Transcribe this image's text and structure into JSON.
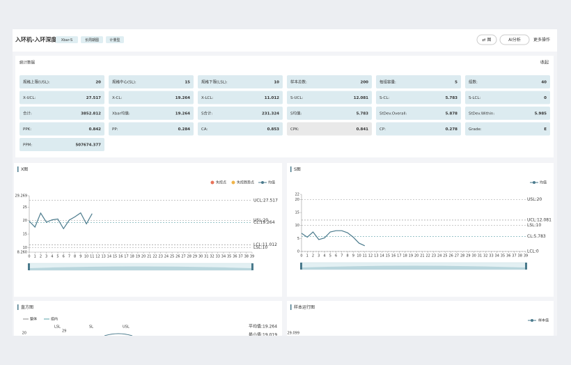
{
  "header": {
    "title": "入环机-入环深度",
    "tags": [
      "Xbar-S",
      "长周期图",
      "计量型"
    ],
    "buttons": [
      "⇄ 图",
      "AI分析",
      "更多操作"
    ]
  },
  "stats": {
    "title": "统计数据",
    "toggle": "收起",
    "items": [
      {
        "label": "规格上限(USL):",
        "value": 20
      },
      {
        "label": "规格中心(SL):",
        "value": 15
      },
      {
        "label": "规格下限(LSL):",
        "value": 10
      },
      {
        "label": "样本总数:",
        "value": 200
      },
      {
        "label": "每组容量:",
        "value": 5
      },
      {
        "label": "组数:",
        "value": 40
      },
      {
        "label": "X-UCL:",
        "value": 27.517
      },
      {
        "label": "X-CL:",
        "value": 19.264
      },
      {
        "label": "X-LCL:",
        "value": 11.012
      },
      {
        "label": "S-UCL:",
        "value": 12.081
      },
      {
        "label": "S-CL:",
        "value": 5.783
      },
      {
        "label": "S-LCL:",
        "value": 0
      },
      {
        "label": "合计:",
        "value": 3852.812
      },
      {
        "label": "Xbar均值:",
        "value": 19.264
      },
      {
        "label": "S合计:",
        "value": 231.324
      },
      {
        "label": "S均值:",
        "value": 5.783
      },
      {
        "label": "StDev.Overall:",
        "value": 5.878
      },
      {
        "label": "StDev.Within:",
        "value": 5.985
      },
      {
        "label": "PPK:",
        "value": 0.842
      },
      {
        "label": "PP:",
        "value": 0.284
      },
      {
        "label": "CA:",
        "value": 0.853
      },
      {
        "label": "CPK:",
        "value": 0.841,
        "highlight": true
      },
      {
        "label": "CP:",
        "value": 0.278
      },
      {
        "label": "Grade:",
        "value": "E"
      },
      {
        "label": "PPM:",
        "value": 507674.377
      }
    ]
  },
  "x_chart": {
    "type": "line",
    "title": "X图",
    "legend_extra": [
      {
        "name": "失控点",
        "color": "#e8735a"
      },
      {
        "name": "失控趋势点",
        "color": "#f0b54a"
      }
    ],
    "x": [
      0,
      1,
      2,
      3,
      4,
      5,
      6,
      7,
      8,
      9,
      10,
      11,
      12,
      13,
      14,
      15,
      16,
      17,
      18,
      19,
      20,
      21,
      22,
      23,
      24,
      25,
      26,
      27,
      28,
      29,
      30,
      31,
      32,
      33,
      34,
      35,
      36,
      37,
      38,
      39
    ],
    "xlim": [
      0,
      39
    ],
    "xticks": [
      0,
      1,
      2,
      3,
      4,
      5,
      6,
      7,
      8,
      9,
      10,
      11,
      12,
      13,
      14,
      15,
      16,
      17,
      18,
      19,
      20,
      21,
      22,
      23,
      24,
      25,
      26,
      27,
      28,
      29,
      30,
      31,
      32,
      33,
      34,
      35,
      36,
      37,
      38,
      39
    ],
    "ylim": [
      8.26,
      29.269
    ],
    "yticks": [
      {
        "value": 8.26,
        "label": "8.260"
      },
      10,
      15,
      20,
      25,
      29.269
    ],
    "series": [
      {
        "name": "均值",
        "color": "#4a7a8c",
        "values": [
          19.8,
          17.6,
          22.8,
          19.4,
          20.3,
          20.6,
          17.0,
          20.2,
          21.4,
          22.9,
          18.8,
          22.6,
          null,
          null,
          null,
          null,
          null,
          null,
          null,
          null,
          null,
          null,
          null,
          null,
          null,
          null,
          null,
          null,
          null,
          null,
          null,
          null,
          null,
          null,
          null,
          null,
          null,
          null,
          null,
          null
        ]
      }
    ],
    "limits": [
      {
        "label": "UCL:27.517",
        "value": 27.517,
        "color": "#888"
      },
      {
        "label": "USL:20",
        "value": 20,
        "color": "#aaa"
      },
      {
        "label": "CL:19.264",
        "value": 19.264,
        "color": "#5aa0a8"
      },
      {
        "label": "LCL:11.012",
        "value": 11.012,
        "color": "#888"
      },
      {
        "label": "LSL:10",
        "value": 10,
        "color": "#aaa"
      }
    ]
  },
  "s_chart": {
    "type": "line",
    "title": "S图",
    "x": [
      0,
      1,
      2,
      3,
      4,
      5,
      6,
      7,
      8,
      9,
      10,
      11,
      12,
      13,
      14,
      15,
      16,
      17,
      18,
      19,
      20,
      21,
      22,
      23,
      24,
      25,
      26,
      27,
      28,
      29,
      30,
      31,
      32,
      33,
      34,
      35,
      36,
      37,
      38,
      39
    ],
    "xlim": [
      0,
      39
    ],
    "xticks": [
      0,
      1,
      2,
      3,
      4,
      5,
      6,
      7,
      8,
      9,
      10,
      11,
      12,
      13,
      14,
      15,
      16,
      17,
      18,
      19,
      20,
      21,
      22,
      23,
      24,
      25,
      26,
      27,
      28,
      29,
      30,
      31,
      32,
      33,
      34,
      35,
      36,
      37,
      38,
      39
    ],
    "ylim": [
      0,
      22
    ],
    "yticks": [
      0,
      5,
      10,
      15,
      20,
      22
    ],
    "series": [
      {
        "name": "均值",
        "color": "#4a7a8c",
        "values": [
          7,
          5.5,
          7.5,
          4.6,
          5.2,
          7.5,
          8,
          8,
          7.2,
          5.5,
          3.2,
          2.2,
          null,
          null,
          null,
          null,
          null,
          null,
          null,
          null,
          null,
          null,
          null,
          null,
          null,
          null,
          null,
          null,
          null,
          null,
          null,
          null,
          null,
          null,
          null,
          null,
          null,
          null,
          null,
          null
        ]
      }
    ],
    "limits": [
      {
        "label": "USL:20",
        "value": 20,
        "color": "#aaa"
      },
      {
        "label": "UCL:12.081",
        "value": 12.081,
        "color": "#888"
      },
      {
        "label": "LSL:10",
        "value": 10,
        "color": "#aaa"
      },
      {
        "label": "CL:5.783",
        "value": 5.783,
        "color": "#5aa0a8"
      },
      {
        "label": "LCL:0",
        "value": 0,
        "color": "#888"
      }
    ]
  },
  "histogram": {
    "title": "直方图",
    "legend": [
      "整体",
      "组内"
    ],
    "markers": [
      "LSL",
      "SL",
      "USL"
    ],
    "bar_label": "29",
    "annotations": [
      "平均值:19.264",
      "最小值:19.019"
    ],
    "ytick": "20"
  },
  "run_chart": {
    "title": "样本运行图",
    "legend": "样本值",
    "ytick": "29.099"
  }
}
